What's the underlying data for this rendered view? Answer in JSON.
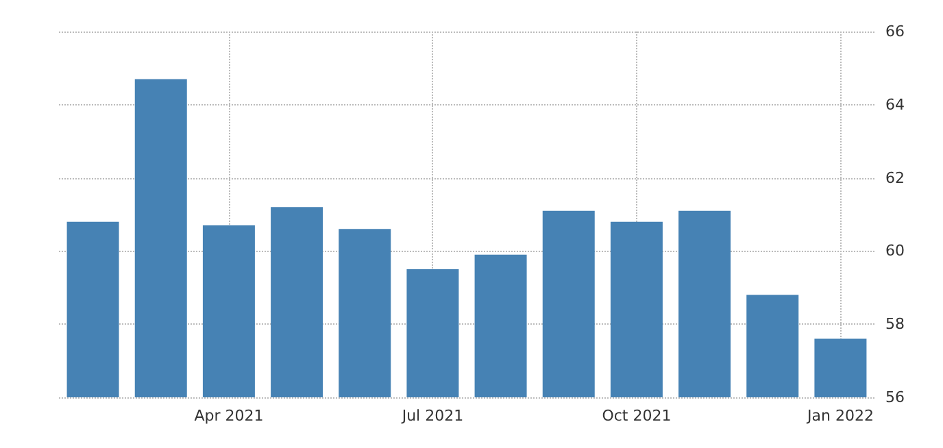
{
  "chart_data": {
    "type": "bar",
    "categories": [
      null,
      null,
      "Apr 2021",
      null,
      null,
      "Jul 2021",
      null,
      null,
      "Oct 2021",
      null,
      null,
      "Jan 2022"
    ],
    "values": [
      60.8,
      64.7,
      60.7,
      61.2,
      60.6,
      59.5,
      59.9,
      61.1,
      60.8,
      61.1,
      58.8,
      57.6
    ],
    "color": "#4682b4",
    "ylim": [
      56,
      66
    ],
    "yticks": [
      56,
      58,
      60,
      62,
      64,
      66
    ],
    "grid": true
  }
}
